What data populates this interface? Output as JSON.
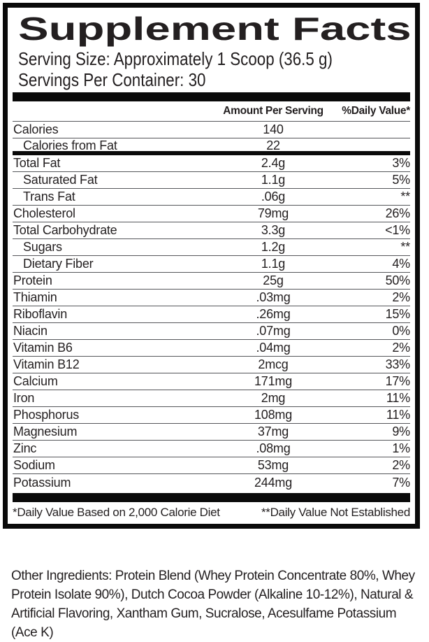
{
  "label": {
    "title": "Supplement Facts",
    "serving_size": "Serving Size: Approximately 1 Scoop (36.5 g)",
    "servings_per_container": "Servings Per Container: 30",
    "columns": {
      "amount": "Amount Per Serving",
      "daily_value": "%Daily Value*"
    },
    "rows": [
      {
        "label": "Calories",
        "amount": "140",
        "dv": "",
        "indent": false,
        "divider_after": "thin"
      },
      {
        "label": "Calories from Fat",
        "amount": "22",
        "dv": "",
        "indent": true,
        "divider_after": "thick"
      },
      {
        "label": "Total Fat",
        "amount": "2.4g",
        "dv": "3%",
        "indent": false,
        "divider_after": "thin"
      },
      {
        "label": "Saturated Fat",
        "amount": "1.1g",
        "dv": "5%",
        "indent": true,
        "divider_after": "thin"
      },
      {
        "label": "Trans Fat",
        "amount": ".06g",
        "dv": "**",
        "indent": true,
        "divider_after": "thin"
      },
      {
        "label": "Cholesterol",
        "amount": "79mg",
        "dv": "26%",
        "indent": false,
        "divider_after": "thin"
      },
      {
        "label": "Total Carbohydrate",
        "amount": "3.3g",
        "dv": "<1%",
        "indent": false,
        "divider_after": "thin"
      },
      {
        "label": "Sugars",
        "amount": "1.2g",
        "dv": "**",
        "indent": true,
        "divider_after": "thin"
      },
      {
        "label": "Dietary Fiber",
        "amount": "1.1g",
        "dv": "4%",
        "indent": true,
        "divider_after": "thin"
      },
      {
        "label": "Protein",
        "amount": "25g",
        "dv": "50%",
        "indent": false,
        "divider_after": "thin"
      },
      {
        "label": "Thiamin",
        "amount": ".03mg",
        "dv": "2%",
        "indent": false,
        "divider_after": "thin"
      },
      {
        "label": "Riboflavin",
        "amount": ".26mg",
        "dv": "15%",
        "indent": false,
        "divider_after": "thin"
      },
      {
        "label": "Niacin",
        "amount": ".07mg",
        "dv": "0%",
        "indent": false,
        "divider_after": "thin"
      },
      {
        "label": "Vitamin B6",
        "amount": ".04mg",
        "dv": "2%",
        "indent": false,
        "divider_after": "thin"
      },
      {
        "label": "Vitamin B12",
        "amount": "2mcg",
        "dv": "33%",
        "indent": false,
        "divider_after": "thin"
      },
      {
        "label": "Calcium",
        "amount": "171mg",
        "dv": "17%",
        "indent": false,
        "divider_after": "thin"
      },
      {
        "label": "Iron",
        "amount": "2mg",
        "dv": "11%",
        "indent": false,
        "divider_after": "thin"
      },
      {
        "label": "Phosphorus",
        "amount": "108mg",
        "dv": "11%",
        "indent": false,
        "divider_after": "thin"
      },
      {
        "label": "Magnesium",
        "amount": "37mg",
        "dv": "9%",
        "indent": false,
        "divider_after": "thin"
      },
      {
        "label": "Zinc",
        "amount": ".08mg",
        "dv": "1%",
        "indent": false,
        "divider_after": "thin"
      },
      {
        "label": "Sodium",
        "amount": "53mg",
        "dv": "2%",
        "indent": false,
        "divider_after": "thin"
      },
      {
        "label": "Potassium",
        "amount": "244mg",
        "dv": "7%",
        "indent": false,
        "divider_after": "none"
      }
    ],
    "footnotes": {
      "left": "*Daily Value Based on 2,000 Calorie Diet",
      "right": "**Daily Value Not Established"
    }
  },
  "other_ingredients": "Other Ingredients: Protein Blend (Whey Protein Concentrate 80%, Whey Protein Isolate 90%), Dutch Cocoa Powder (Alkaline 10-12%), Natural & Artificial Flavoring, Xantham Gum, Sucralose, Acesulfame Potassium (Ace K)",
  "colors": {
    "text": "#231f20",
    "border": "#0a0a0a",
    "separator": "#55565a",
    "background": "#ffffff"
  }
}
